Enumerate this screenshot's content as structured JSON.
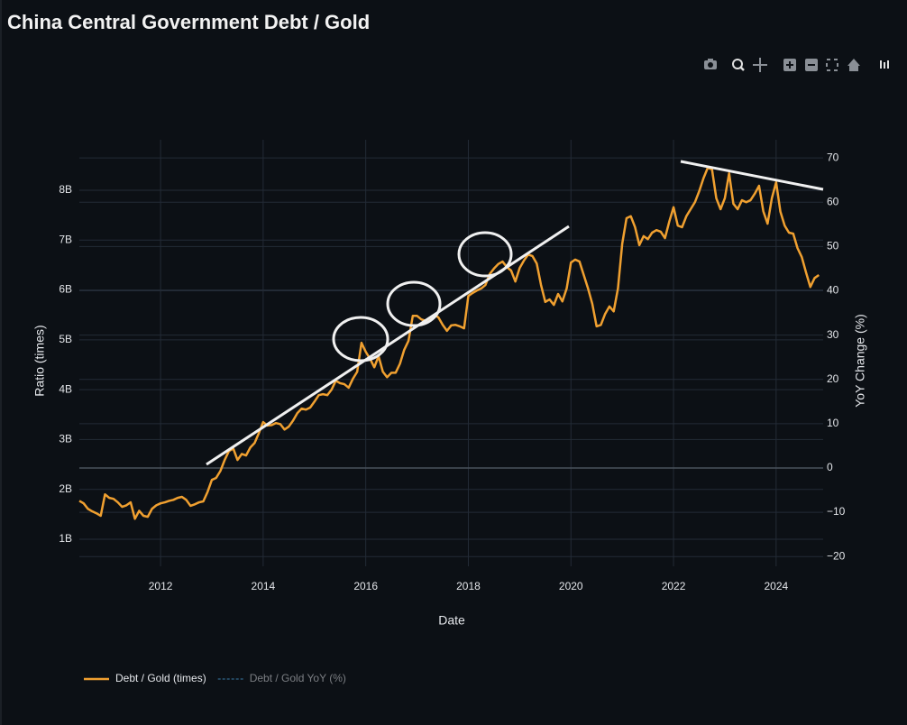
{
  "chart_data": {
    "type": "line",
    "title": "China Central Government Debt / Gold",
    "xlabel": "Date",
    "ylabel": "Ratio (times)",
    "y2label": "YoY Change (%)",
    "x": [
      "2010-06",
      "2010-07",
      "2010-08",
      "2010-09",
      "2010-10",
      "2010-11",
      "2010-12",
      "2011-01",
      "2011-02",
      "2011-03",
      "2011-04",
      "2011-05",
      "2011-06",
      "2011-07",
      "2011-08",
      "2011-09",
      "2011-10",
      "2011-11",
      "2011-12",
      "2012-01",
      "2012-02",
      "2012-03",
      "2012-04",
      "2012-05",
      "2012-06",
      "2012-07",
      "2012-08",
      "2012-09",
      "2012-10",
      "2012-11",
      "2012-12",
      "2013-01",
      "2013-02",
      "2013-03",
      "2013-04",
      "2013-05",
      "2013-06",
      "2013-07",
      "2013-08",
      "2013-09",
      "2013-10",
      "2013-11",
      "2013-12",
      "2014-01",
      "2014-02",
      "2014-03",
      "2014-04",
      "2014-05",
      "2014-06",
      "2014-07",
      "2014-08",
      "2014-09",
      "2014-10",
      "2014-11",
      "2014-12",
      "2015-01",
      "2015-02",
      "2015-03",
      "2015-04",
      "2015-05",
      "2015-06",
      "2015-07",
      "2015-08",
      "2015-09",
      "2015-10",
      "2015-11",
      "2015-12",
      "2016-01",
      "2016-02",
      "2016-03",
      "2016-04",
      "2016-05",
      "2016-06",
      "2016-07",
      "2016-08",
      "2016-09",
      "2016-10",
      "2016-11",
      "2016-12",
      "2017-01",
      "2017-02",
      "2017-03",
      "2017-04",
      "2017-05",
      "2017-06",
      "2017-07",
      "2017-08",
      "2017-09",
      "2017-10",
      "2017-11",
      "2017-12",
      "2018-01",
      "2018-02",
      "2018-03",
      "2018-04",
      "2018-05",
      "2018-06",
      "2018-07",
      "2018-08",
      "2018-09",
      "2018-10",
      "2018-11",
      "2018-12",
      "2019-01",
      "2019-02",
      "2019-03",
      "2019-04",
      "2019-05",
      "2019-06",
      "2019-07",
      "2019-08",
      "2019-09",
      "2019-10",
      "2019-11",
      "2019-12",
      "2020-01",
      "2020-02",
      "2020-03",
      "2020-04",
      "2020-05",
      "2020-06",
      "2020-07",
      "2020-08",
      "2020-09",
      "2020-10",
      "2020-11",
      "2020-12",
      "2021-01",
      "2021-02",
      "2021-03",
      "2021-04",
      "2021-05",
      "2021-06",
      "2021-07",
      "2021-08",
      "2021-09",
      "2021-10",
      "2021-11",
      "2021-12",
      "2022-01",
      "2022-02",
      "2022-03",
      "2022-04",
      "2022-05",
      "2022-06",
      "2022-07",
      "2022-08",
      "2022-09",
      "2022-10",
      "2022-11",
      "2022-12",
      "2023-01",
      "2023-02",
      "2023-03",
      "2023-04",
      "2023-05",
      "2023-06",
      "2023-07",
      "2023-08",
      "2023-09",
      "2023-10",
      "2023-11",
      "2023-12",
      "2024-01",
      "2024-02",
      "2024-03",
      "2024-04",
      "2024-05",
      "2024-06",
      "2024-07",
      "2024-08",
      "2024-09",
      "2024-10",
      "2024-11"
    ],
    "series": [
      {
        "name": "Debt / Gold (times)",
        "color": "#f0a030",
        "axis": "y",
        "values": [
          1770000000.0,
          1720000000.0,
          1610000000.0,
          1560000000.0,
          1520000000.0,
          1470000000.0,
          1900000000.0,
          1830000000.0,
          1810000000.0,
          1740000000.0,
          1650000000.0,
          1680000000.0,
          1740000000.0,
          1410000000.0,
          1570000000.0,
          1470000000.0,
          1450000000.0,
          1610000000.0,
          1680000000.0,
          1720000000.0,
          1740000000.0,
          1770000000.0,
          1790000000.0,
          1830000000.0,
          1850000000.0,
          1790000000.0,
          1670000000.0,
          1700000000.0,
          1740000000.0,
          1760000000.0,
          1950000000.0,
          2190000000.0,
          2230000000.0,
          2370000000.0,
          2590000000.0,
          2770000000.0,
          2820000000.0,
          2590000000.0,
          2710000000.0,
          2680000000.0,
          2840000000.0,
          2930000000.0,
          3130000000.0,
          3350000000.0,
          3280000000.0,
          3290000000.0,
          3330000000.0,
          3310000000.0,
          3200000000.0,
          3260000000.0,
          3380000000.0,
          3530000000.0,
          3620000000.0,
          3600000000.0,
          3640000000.0,
          3760000000.0,
          3890000000.0,
          3910000000.0,
          3890000000.0,
          4000000000.0,
          4180000000.0,
          4130000000.0,
          4110000000.0,
          4040000000.0,
          4220000000.0,
          4360000000.0,
          4940000000.0,
          4760000000.0,
          4620000000.0,
          4450000000.0,
          4670000000.0,
          4360000000.0,
          4250000000.0,
          4340000000.0,
          4340000000.0,
          4520000000.0,
          4800000000.0,
          4980000000.0,
          5480000000.0,
          5480000000.0,
          5410000000.0,
          5380000000.0,
          5390000000.0,
          5500000000.0,
          5450000000.0,
          5300000000.0,
          5180000000.0,
          5290000000.0,
          5300000000.0,
          5270000000.0,
          5230000000.0,
          5880000000.0,
          5940000000.0,
          5990000000.0,
          6030000000.0,
          6100000000.0,
          6320000000.0,
          6430000000.0,
          6520000000.0,
          6570000000.0,
          6460000000.0,
          6390000000.0,
          6170000000.0,
          6440000000.0,
          6590000000.0,
          6710000000.0,
          6680000000.0,
          6530000000.0,
          6100000000.0,
          5760000000.0,
          5810000000.0,
          5700000000.0,
          5920000000.0,
          5770000000.0,
          6030000000.0,
          6550000000.0,
          6610000000.0,
          6570000000.0,
          6300000000.0,
          6030000000.0,
          5720000000.0,
          5270000000.0,
          5300000000.0,
          5520000000.0,
          5670000000.0,
          5570000000.0,
          6030000000.0,
          6930000000.0,
          7440000000.0,
          7480000000.0,
          7260000000.0,
          6900000000.0,
          7080000000.0,
          7020000000.0,
          7150000000.0,
          7200000000.0,
          7170000000.0,
          7040000000.0,
          7370000000.0,
          7660000000.0,
          7290000000.0,
          7260000000.0,
          7480000000.0,
          7620000000.0,
          7760000000.0,
          7980000000.0,
          8240000000.0,
          8450000000.0,
          8420000000.0,
          7840000000.0,
          7620000000.0,
          7840000000.0,
          8340000000.0,
          7730000000.0,
          7620000000.0,
          7800000000.0,
          7760000000.0,
          7800000000.0,
          7930000000.0,
          8090000000.0,
          7580000000.0,
          7330000000.0,
          7840000000.0,
          8160000000.0,
          7570000000.0,
          7290000000.0,
          7150000000.0,
          7130000000.0,
          6840000000.0,
          6660000000.0,
          6350000000.0,
          6060000000.0,
          6240000000.0,
          6300000000.0
        ]
      },
      {
        "name": "Debt / Gold YoY (%)",
        "color": "#4a9fd8",
        "axis": "y2",
        "dash": true,
        "visible": false
      }
    ],
    "xlim": [
      "2010-06",
      "2024-12"
    ],
    "xticks": [
      2012,
      2014,
      2016,
      2018,
      2020,
      2022,
      2024
    ],
    "ylim": [
      457000000.0,
      9013000000.0
    ],
    "yticks": [
      {
        "value": 1000000000.0,
        "label": "1B"
      },
      {
        "value": 2000000000.0,
        "label": "2B"
      },
      {
        "value": 3000000000.0,
        "label": "3B"
      },
      {
        "value": 4000000000.0,
        "label": "4B"
      },
      {
        "value": 5000000000.0,
        "label": "5B"
      },
      {
        "value": 6000000000.0,
        "label": "6B"
      },
      {
        "value": 7000000000.0,
        "label": "7B"
      },
      {
        "value": 8000000000.0,
        "label": "8B"
      }
    ],
    "y2lim": [
      -22.2,
      74.1
    ],
    "y2ticks": [
      {
        "value": -20,
        "label": "−20"
      },
      {
        "value": -10,
        "label": "−10"
      },
      0,
      10,
      20,
      30,
      40,
      50,
      60,
      70
    ],
    "grid": true,
    "zeroline": true,
    "legend": "bottom-left"
  }
}
